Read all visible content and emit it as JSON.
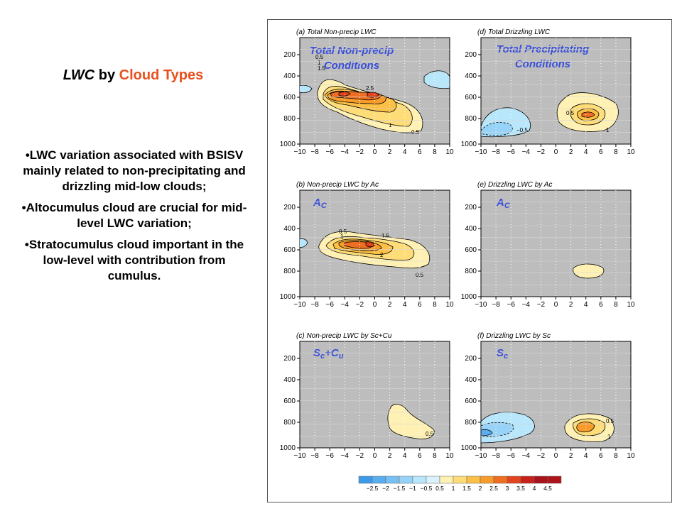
{
  "slide": {
    "title_part1": "LWC",
    "title_part2": " by ",
    "title_part3": "Cloud Types",
    "bullets": [
      "•LWC variation associated with BSISV mainly related to non-precipitating and drizzling mid-low clouds;",
      "•Altocumulus cloud are crucial for mid-level LWC variation;",
      "•Stratocumulus cloud important in the low-level with contribution from cumulus."
    ]
  },
  "colors": {
    "title_accent": "#e8501e",
    "panel_bg": "#bdbdbd",
    "overlay_text": "#3a4fd8"
  },
  "panels": [
    {
      "header": "(a) Total Non-precip LWC",
      "overlay_line1": "Total Non-precip",
      "overlay_line2": "Conditions"
    },
    {
      "header": "(d) Total Drizzling LWC",
      "overlay_line1": "Total Precipitating",
      "overlay_line2": "Conditions"
    },
    {
      "header": "(b) Non-precip LWC by Ac",
      "overlay_line1": "A",
      "overlay_sub1": "C"
    },
    {
      "header": "(e) Drizzling LWC by Ac",
      "overlay_line1": "A",
      "overlay_sub1": "C"
    },
    {
      "header": "(c) Non-precip LWC by Sc+Cu",
      "overlay_line1": "S",
      "overlay_sub1": "c",
      "overlay_line2": "+C",
      "overlay_sub2": "u"
    },
    {
      "header": "(f) Drizzling LWC by Sc",
      "overlay_line1": "S",
      "overlay_sub1": "c"
    }
  ],
  "axes": {
    "x_ticks": [
      "−10",
      "−8",
      "−6",
      "−4",
      "−2",
      "0",
      "2",
      "4",
      "6",
      "8",
      "10"
    ],
    "y_ticks": [
      "200",
      "400",
      "600",
      "800",
      "1000"
    ]
  },
  "contour_labels": {
    "a": [
      "0.5",
      "1",
      "1.5",
      "2.5",
      "1",
      "0.5"
    ],
    "d": [
      "0.5",
      "−0.5",
      "1"
    ],
    "b": [
      "0.5",
      "1",
      "1.5",
      "2",
      "0.5"
    ],
    "c": [
      "0.5"
    ],
    "f": [
      "0.5",
      "1"
    ]
  },
  "colorbar": {
    "labels": [
      "−2.5",
      "−2",
      "−1.5",
      "−1",
      "−0.5",
      "0.5",
      "1",
      "1.5",
      "2",
      "2.5",
      "3",
      "3.5",
      "4",
      "4.5"
    ],
    "colors": [
      "#3c9be8",
      "#5aaef0",
      "#78c0f4",
      "#97d3f8",
      "#b8e6fb",
      "#d9f2fc",
      "#fff1b4",
      "#fedd78",
      "#fcc046",
      "#f89b2a",
      "#f06e22",
      "#e2441b",
      "#c8211a",
      "#a8121a",
      "#b0121a"
    ]
  }
}
